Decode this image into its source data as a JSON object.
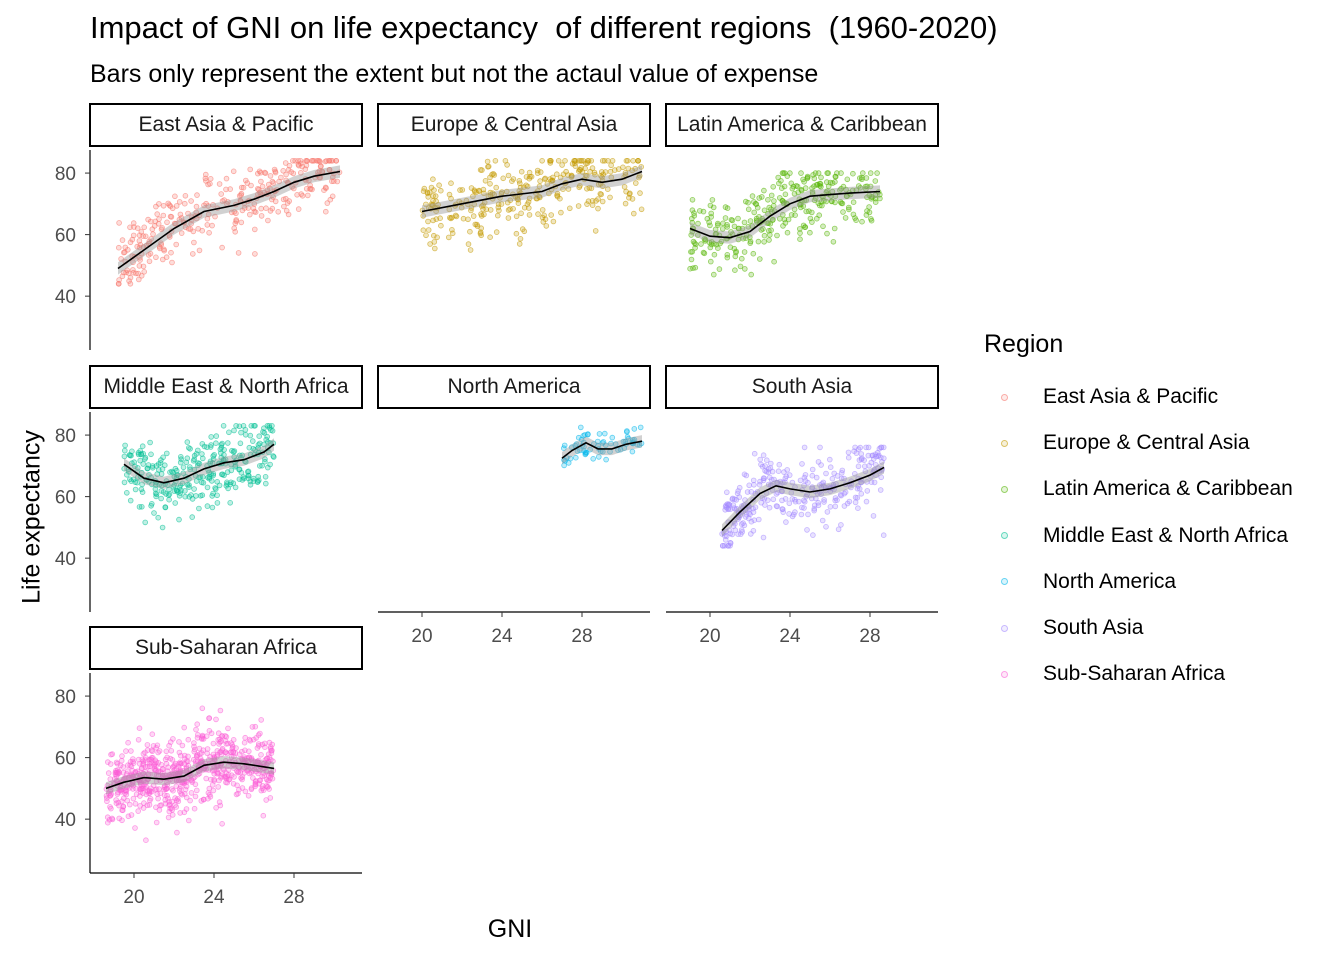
{
  "chart_data": {
    "type": "scatter",
    "title": "Impact of GNI on life expectancy  of different regions  (1960-2020)",
    "subtitle": "Bars only represent the extent but not the actaul value of expense",
    "xlabel": "GNI",
    "ylabel": "Life expectancy",
    "xlim": [
      17.8,
      31.4
    ],
    "ylim": [
      22.5,
      87.5
    ],
    "x_ticks": [
      20,
      24,
      28
    ],
    "y_ticks": [
      40,
      60,
      80
    ],
    "grid": false,
    "legend": {
      "title": "Region",
      "position": "right"
    },
    "facets": [
      {
        "name": "East Asia & Pacific",
        "color": "#F8766D",
        "x_range": [
          19.2,
          30.3
        ],
        "y_range": [
          44,
          84
        ],
        "trend": [
          [
            19.2,
            49
          ],
          [
            20.5,
            55
          ],
          [
            22,
            62
          ],
          [
            23.5,
            67.5
          ],
          [
            25,
            69.5
          ],
          [
            26,
            71.5
          ],
          [
            27,
            74
          ],
          [
            28,
            77
          ],
          [
            29,
            79
          ],
          [
            30.3,
            80.5
          ]
        ]
      },
      {
        "name": "Europe & Central Asia",
        "color": "#C49A00",
        "x_range": [
          20,
          31
        ],
        "y_range": [
          55,
          84
        ],
        "trend": [
          [
            20,
            67.5
          ],
          [
            22,
            70
          ],
          [
            24,
            72.5
          ],
          [
            26,
            74
          ],
          [
            27,
            76.5
          ],
          [
            28,
            78
          ],
          [
            29,
            77
          ],
          [
            30,
            78
          ],
          [
            31,
            80.5
          ]
        ]
      },
      {
        "name": "Latin America & Caribbean",
        "color": "#53B400",
        "x_range": [
          19,
          28.5
        ],
        "y_range": [
          47,
          80
        ],
        "trend": [
          [
            19,
            62
          ],
          [
            20,
            59.5
          ],
          [
            21,
            59
          ],
          [
            22,
            61
          ],
          [
            23,
            66
          ],
          [
            24,
            70
          ],
          [
            25,
            72.5
          ],
          [
            26,
            73
          ],
          [
            27,
            73.5
          ],
          [
            28.5,
            74
          ]
        ]
      },
      {
        "name": "Middle East & North Africa",
        "color": "#00C094",
        "x_range": [
          19.5,
          27
        ],
        "y_range": [
          44,
          83
        ],
        "trend": [
          [
            19.5,
            70.5
          ],
          [
            20.5,
            66
          ],
          [
            21.5,
            64.5
          ],
          [
            22.5,
            66
          ],
          [
            23.5,
            69
          ],
          [
            24.5,
            71
          ],
          [
            25.5,
            72
          ],
          [
            26.5,
            74.5
          ],
          [
            27,
            77
          ]
        ]
      },
      {
        "name": "North America",
        "color": "#00B6EB",
        "x_range": [
          27,
          31
        ],
        "y_range": [
          69.5,
          82.5
        ],
        "trend": [
          [
            27,
            72.5
          ],
          [
            27.5,
            75
          ],
          [
            28.2,
            77.5
          ],
          [
            28.8,
            75.5
          ],
          [
            29.5,
            75.5
          ],
          [
            30.2,
            77
          ],
          [
            31,
            78
          ]
        ]
      },
      {
        "name": "South Asia",
        "color": "#A58AFF",
        "x_range": [
          20.6,
          28.7
        ],
        "y_range": [
          44,
          76
        ],
        "trend": [
          [
            20.6,
            49
          ],
          [
            21.5,
            55
          ],
          [
            22.5,
            61
          ],
          [
            23.3,
            63.5
          ],
          [
            24,
            62.5
          ],
          [
            25,
            61.5
          ],
          [
            26,
            62.5
          ],
          [
            27,
            64.5
          ],
          [
            28,
            67
          ],
          [
            28.7,
            69.5
          ]
        ]
      },
      {
        "name": "Sub-Saharan Africa",
        "color": "#FB61D7",
        "x_range": [
          18.6,
          27
        ],
        "y_range": [
          25,
          77
        ],
        "trend": [
          [
            18.6,
            50
          ],
          [
            19.5,
            52
          ],
          [
            20.5,
            53.5
          ],
          [
            21.5,
            53
          ],
          [
            22.5,
            54
          ],
          [
            23.5,
            57.5
          ],
          [
            24.5,
            58.5
          ],
          [
            25.5,
            58
          ],
          [
            27,
            56.5
          ]
        ]
      }
    ]
  }
}
